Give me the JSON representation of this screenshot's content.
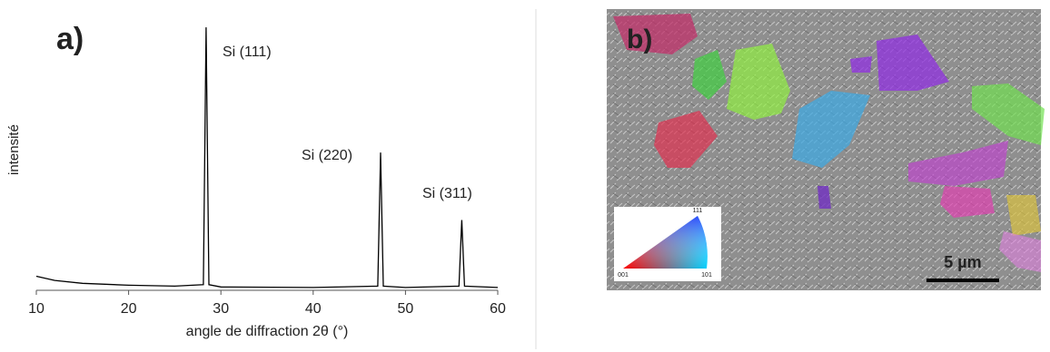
{
  "chart_data": {
    "type": "line",
    "panel_label": "a)",
    "ylabel": "intensité",
    "xlabel": "angle de diffraction 2θ (°)",
    "x": [
      10,
      12,
      15,
      20,
      25,
      28.1,
      28.4,
      28.7,
      30,
      40,
      47.0,
      47.3,
      47.6,
      50,
      55.8,
      56.1,
      56.4,
      60
    ],
    "values": [
      5,
      3.5,
      2.5,
      1.8,
      1.5,
      2,
      93.5,
      2,
      1.2,
      1,
      1.5,
      49,
      1.5,
      1,
      1.5,
      25,
      1.5,
      1
    ],
    "color": "#000000",
    "xlim": [
      10,
      60
    ],
    "ylim": [
      0,
      100
    ],
    "xticks": [
      10,
      20,
      30,
      40,
      50,
      60
    ],
    "grid": false,
    "annotations": [
      "Si (111)",
      "Si (220)",
      "Si (311)"
    ]
  },
  "panel_b": {
    "label": "b)",
    "scale_bar": "5 µm",
    "legend_labels": [
      "111",
      "001",
      "101"
    ]
  }
}
